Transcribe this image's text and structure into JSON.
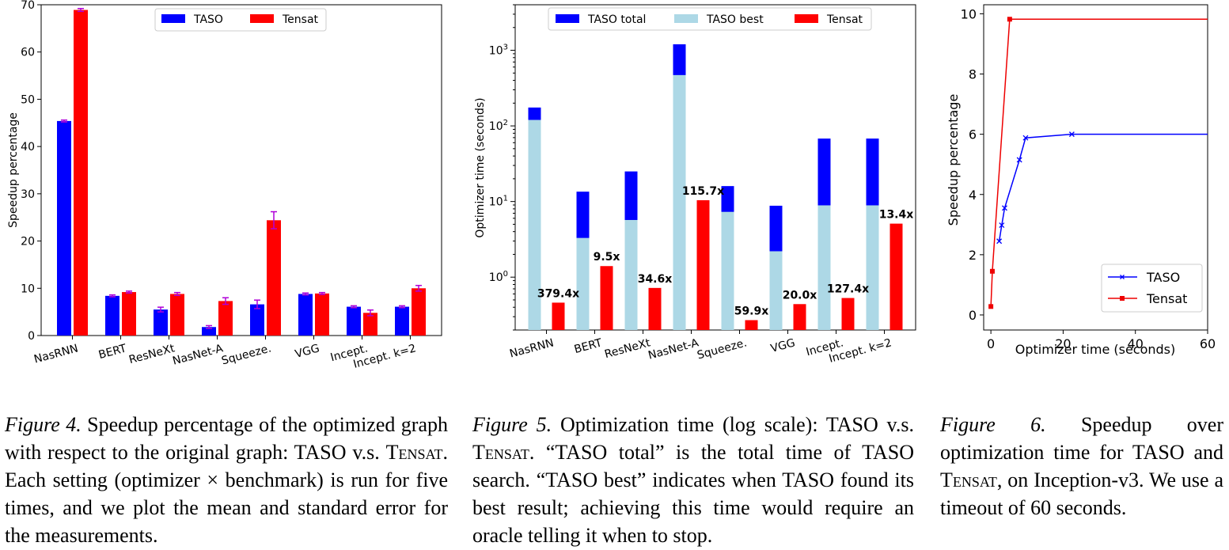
{
  "figures": [
    {
      "label": "Figure 4.",
      "caption_parts": [
        "Speedup percentage of the optimized graph with respect to the original graph: TASO v.s. ",
        "Tensat",
        ". Each setting (optimizer × benchmark) is run for five times, and we plot the mean and standard error for the measurements."
      ]
    },
    {
      "label": "Figure 5.",
      "caption_parts": [
        "Optimization time (log scale): TASO v.s. ",
        "Tensat",
        ". “TASO total” is the total time of TASO search. “TASO best” indicates when TASO found its best result; achieving this time would require an oracle telling it when to stop."
      ]
    },
    {
      "label": "Figure 6.",
      "caption_parts": [
        "Speedup over optimization time for TASO and ",
        "Tensat",
        ", on Inception-v3. We use a timeout of 60 seconds."
      ]
    }
  ],
  "chart_data": [
    {
      "type": "bar",
      "ylabel": "Speedup percentage",
      "ylim": [
        0,
        70
      ],
      "yticks": [
        0,
        10,
        20,
        30,
        40,
        50,
        60,
        70
      ],
      "legend_position": "top-center",
      "categories": [
        "NasRNN",
        "BERT",
        "ResNeXt",
        "NasNet-A",
        "Squeeze.",
        "VGG",
        "Incept.",
        "Incept. k=2"
      ],
      "series": [
        {
          "name": "TASO",
          "color": "#0000ff",
          "values": [
            45.4,
            8.4,
            5.5,
            1.8,
            6.6,
            8.8,
            6.1,
            6.1
          ],
          "errors": [
            0.2,
            0.2,
            0.5,
            0.3,
            0.9,
            0.2,
            0.2,
            0.2
          ]
        },
        {
          "name": "Tensat",
          "color": "#ff0000",
          "values": [
            68.9,
            9.2,
            8.8,
            7.3,
            24.4,
            8.9,
            4.8,
            10.0
          ],
          "errors": [
            0.3,
            0.2,
            0.3,
            0.7,
            1.8,
            0.2,
            0.6,
            0.6
          ]
        }
      ],
      "error_color": "#b000d8"
    },
    {
      "type": "bar",
      "scale": "log",
      "ylabel": "Optimizer time (seconds)",
      "ylim": [
        0.2,
        4000
      ],
      "yticks": [
        {
          "value": 1,
          "base": "10",
          "exp": "0"
        },
        {
          "value": 10,
          "base": "10",
          "exp": "1"
        },
        {
          "value": 100,
          "base": "10",
          "exp": "2"
        },
        {
          "value": 1000,
          "base": "10",
          "exp": "3"
        }
      ],
      "legend_position": "top",
      "categories": [
        "NasRNN",
        "BERT",
        "ResNeXt",
        "NasNet-A",
        "Squeeze.",
        "VGG",
        "Incept.",
        "Incept. k=2"
      ],
      "series": [
        {
          "name": "TASO total",
          "color": "#0000ff",
          "values": [
            175,
            13.5,
            25,
            1200,
            16,
            8.8,
            68,
            68
          ]
        },
        {
          "name": "TASO best",
          "color": "#add8e6",
          "values": [
            120,
            3.3,
            5.7,
            470,
            7.3,
            2.2,
            8.9,
            8.9
          ]
        },
        {
          "name": "Tensat",
          "color": "#ff0000",
          "values": [
            0.46,
            1.4,
            0.72,
            10.4,
            0.27,
            0.44,
            0.53,
            5.1
          ]
        }
      ],
      "annotations": [
        "379.4x",
        "9.5x",
        "34.6x",
        "115.7x",
        "59.9x",
        "20.0x",
        "127.4x",
        "13.4x"
      ]
    },
    {
      "type": "line",
      "xlabel": "Optimizer time (seconds)",
      "ylabel": "Speedup percentage",
      "xlim": [
        -2,
        60
      ],
      "ylim": [
        -0.5,
        10.3
      ],
      "xticks": [
        0,
        20,
        40,
        60
      ],
      "yticks": [
        0,
        2,
        4,
        6,
        8,
        10
      ],
      "legend_position": "lower-right",
      "series": [
        {
          "name": "TASO",
          "color": "#0000ff",
          "marker": "x",
          "x": [
            2.3,
            3.0,
            3.8,
            7.9,
            9.6,
            22.4,
            60
          ],
          "y": [
            2.45,
            2.98,
            3.55,
            5.15,
            5.88,
            6.0,
            6.0
          ]
        },
        {
          "name": "Tensat",
          "color": "#ee0000",
          "marker": "square",
          "x": [
            0.0,
            0.4,
            5.2,
            60
          ],
          "y": [
            0.28,
            1.45,
            9.82,
            9.82
          ]
        }
      ]
    }
  ]
}
